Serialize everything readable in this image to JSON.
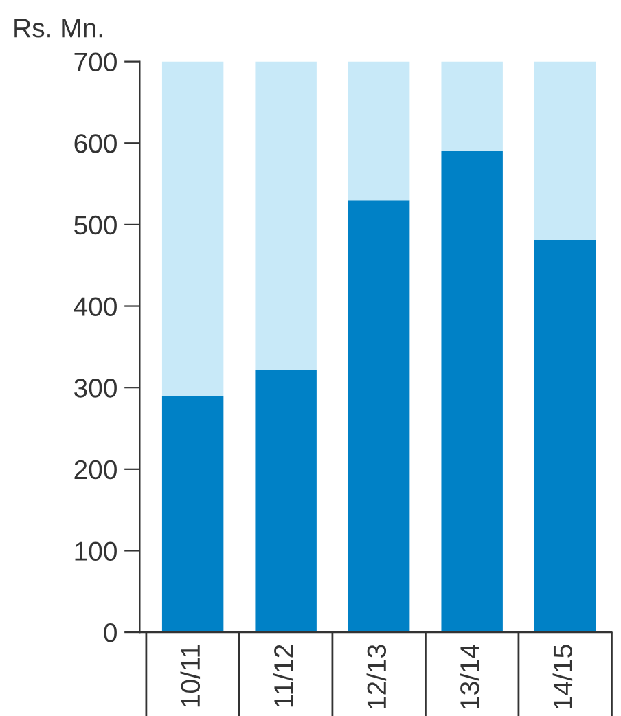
{
  "chart_data": {
    "type": "bar",
    "stacked": true,
    "ylabel": "Rs. Mn.",
    "categories": [
      "10/11",
      "11/12",
      "12/13",
      "13/14",
      "14/15"
    ],
    "series": [
      {
        "color": "#0081c6",
        "values": [
          290,
          322,
          530,
          590,
          481
        ]
      },
      {
        "color": "#c8e9f8",
        "values": [
          410,
          378,
          170,
          110,
          219
        ]
      }
    ],
    "ylim": [
      0,
      700
    ],
    "yticks": [
      0,
      100,
      200,
      300,
      400,
      500,
      600,
      700
    ],
    "grid": false,
    "legend": false
  }
}
